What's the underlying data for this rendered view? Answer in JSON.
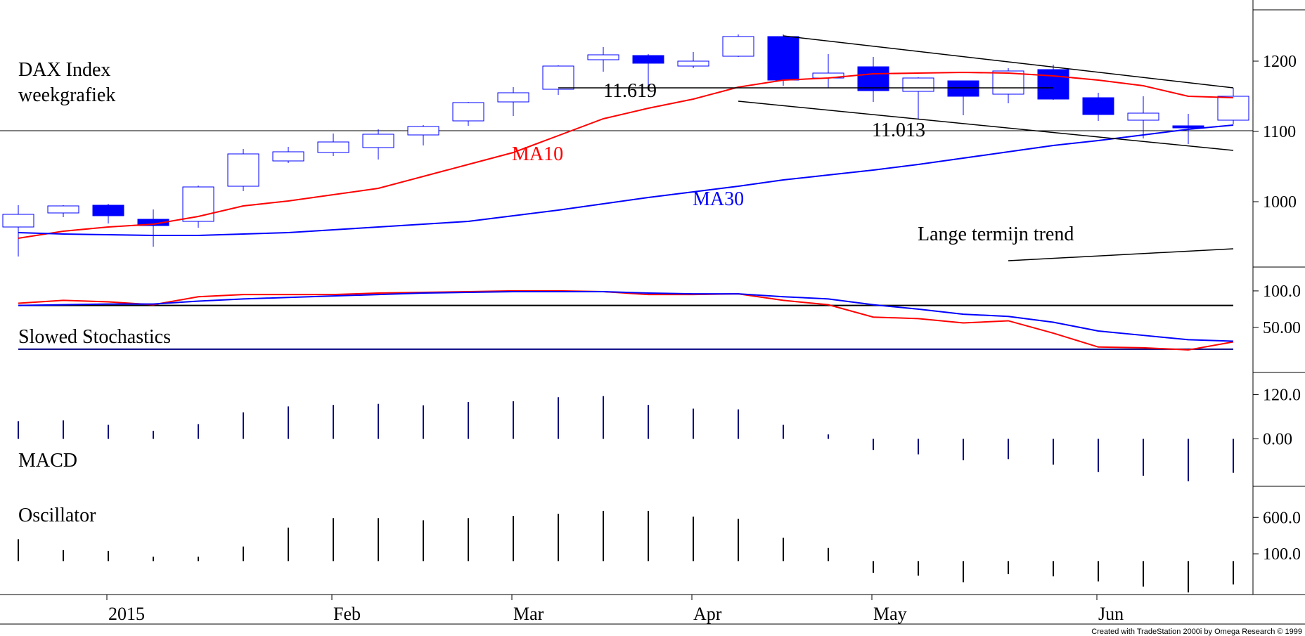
{
  "chart_data": [
    {
      "type": "candlestick",
      "name_label": "DAX Index",
      "subtitle_label": "weekgrafiek",
      "x_tick_labels": [
        {
          "label": "2015",
          "week": 2
        },
        {
          "label": "Feb",
          "week": 7
        },
        {
          "label": "Mar",
          "week": 11
        },
        {
          "label": "Apr",
          "week": 15
        },
        {
          "label": "May",
          "week": 19
        },
        {
          "label": "Jun",
          "week": 24
        }
      ],
      "y_ticks": [
        1000,
        1100,
        1200
      ],
      "ylim": [
        925,
        1265
      ],
      "candles": [
        {
          "week": 0,
          "open": 964,
          "high": 995,
          "low": 922,
          "close": 982
        },
        {
          "week": 1,
          "open": 984,
          "high": 995,
          "low": 978,
          "close": 994
        },
        {
          "week": 2,
          "open": 995,
          "high": 997,
          "low": 969,
          "close": 980
        },
        {
          "week": 3,
          "open": 975,
          "high": 989,
          "low": 936,
          "close": 966
        },
        {
          "week": 4,
          "open": 972,
          "high": 1023,
          "low": 963,
          "close": 1021
        },
        {
          "week": 5,
          "open": 1022,
          "high": 1075,
          "low": 1015,
          "close": 1068
        },
        {
          "week": 6,
          "open": 1058,
          "high": 1078,
          "low": 1055,
          "close": 1071
        },
        {
          "week": 7,
          "open": 1070,
          "high": 1097,
          "low": 1065,
          "close": 1085
        },
        {
          "week": 8,
          "open": 1077,
          "high": 1103,
          "low": 1060,
          "close": 1096
        },
        {
          "week": 9,
          "open": 1095,
          "high": 1109,
          "low": 1080,
          "close": 1107
        },
        {
          "week": 10,
          "open": 1115,
          "high": 1142,
          "low": 1108,
          "close": 1141
        },
        {
          "week": 11,
          "open": 1142,
          "high": 1163,
          "low": 1122,
          "close": 1155
        },
        {
          "week": 12,
          "open": 1160,
          "high": 1194,
          "low": 1152,
          "close": 1193
        },
        {
          "week": 13,
          "open": 1202,
          "high": 1220,
          "low": 1185,
          "close": 1209
        },
        {
          "week": 14,
          "open": 1208,
          "high": 1210,
          "low": 1160,
          "close": 1197
        },
        {
          "week": 15,
          "open": 1193,
          "high": 1213,
          "low": 1190,
          "close": 1200
        },
        {
          "week": 16,
          "open": 1207,
          "high": 1238,
          "low": 1206,
          "close": 1235
        },
        {
          "week": 17,
          "open": 1235,
          "high": 1238,
          "low": 1165,
          "close": 1173
        },
        {
          "week": 18,
          "open": 1176,
          "high": 1210,
          "low": 1162,
          "close": 1183
        },
        {
          "week": 19,
          "open": 1192,
          "high": 1206,
          "low": 1142,
          "close": 1158
        },
        {
          "week": 20,
          "open": 1157,
          "high": 1177,
          "low": 1117,
          "close": 1176
        },
        {
          "week": 21,
          "open": 1172,
          "high": 1172,
          "low": 1123,
          "close": 1150
        },
        {
          "week": 22,
          "open": 1153,
          "high": 1190,
          "low": 1140,
          "close": 1186
        },
        {
          "week": 23,
          "open": 1188,
          "high": 1195,
          "low": 1145,
          "close": 1146
        },
        {
          "week": 24,
          "open": 1148,
          "high": 1155,
          "low": 1115,
          "close": 1124
        },
        {
          "week": 25,
          "open": 1116,
          "high": 1150,
          "low": 1090,
          "close": 1126
        },
        {
          "week": 26,
          "open": 1108,
          "high": 1125,
          "low": 1082,
          "close": 1105
        },
        {
          "week": 27,
          "open": 1116,
          "high": 1162,
          "low": 1110,
          "close": 1150
        }
      ],
      "series": [
        {
          "name": "MA10",
          "color": "#ff0000",
          "values": [
            948,
            958,
            964,
            968,
            979,
            994,
            1001,
            1010,
            1019,
            1036,
            1053,
            1070,
            1094,
            1118,
            1133,
            1146,
            1163,
            1173,
            1176,
            1182,
            1183,
            1184,
            1183,
            1179,
            1173,
            1165,
            1150,
            1148
          ]
        },
        {
          "name": "MA30",
          "color": "#0000ff",
          "values": [
            956,
            954,
            953,
            952,
            952,
            954,
            956,
            960,
            964,
            968,
            972,
            980,
            988,
            997,
            1006,
            1014,
            1022,
            1031,
            1038,
            1045,
            1053,
            1062,
            1071,
            1080,
            1087,
            1095,
            1103,
            1109
          ]
        }
      ],
      "annotations": [
        {
          "text": "11.619",
          "value": 11619,
          "level": 1162,
          "color": "#000000"
        },
        {
          "text": "11.013",
          "value": 11013,
          "level": 1101,
          "color": "#000000"
        },
        {
          "text": "Lange termijn trend",
          "color": "#000000"
        }
      ],
      "trendlines": [
        {
          "from": {
            "week": 17,
            "value": 1236
          },
          "to": {
            "week": 27,
            "value": 1162
          }
        },
        {
          "from": {
            "week": 16,
            "value": 1143
          },
          "to": {
            "week": 27,
            "value": 1073
          }
        },
        {
          "from": {
            "week": 12,
            "value": 1162
          },
          "to": {
            "week": 23,
            "value": 1162
          }
        },
        {
          "from": {
            "week": 22,
            "value": 916
          },
          "to": {
            "week": 27,
            "value": 933
          }
        }
      ],
      "horizontal_line": 1101
    },
    {
      "type": "line",
      "name_label": "Slowed Stochastics",
      "y_tick_labels": [
        "100.0",
        "50.00"
      ],
      "y_ticks": [
        100,
        50
      ],
      "ylim": [
        -10,
        125
      ],
      "reference_lines": [
        80,
        20
      ],
      "series": [
        {
          "name": "",
          "color": "#ff0000",
          "values": [
            83,
            87,
            85,
            81,
            92,
            95,
            95,
            95,
            97,
            98,
            99,
            100,
            100,
            99,
            95,
            95,
            96,
            87,
            81,
            64,
            62,
            56,
            59,
            42,
            23,
            22,
            19,
            30
          ]
        },
        {
          "name": "",
          "color": "#0000ff",
          "values": [
            80,
            81,
            82,
            82,
            86,
            89,
            91,
            93,
            95,
            97,
            98,
            99,
            99,
            99,
            97,
            96,
            96,
            92,
            89,
            81,
            75,
            68,
            65,
            57,
            45,
            39,
            33,
            31
          ]
        }
      ]
    },
    {
      "type": "bar",
      "name_label": "MACD",
      "y_tick_labels": [
        "120.0",
        "0.00"
      ],
      "y_ticks": [
        120,
        0
      ],
      "ylim": [
        -125,
        165
      ],
      "color": "#000080",
      "values": [
        48,
        50,
        38,
        22,
        40,
        72,
        88,
        92,
        95,
        91,
        100,
        102,
        113,
        116,
        92,
        82,
        80,
        38,
        12,
        -30,
        -42,
        -58,
        -55,
        -70,
        -90,
        -100,
        -115,
        -92
      ]
    },
    {
      "type": "bar",
      "name_label": "Oscillator",
      "y_tick_labels": [
        "600.0",
        "100.0"
      ],
      "y_ticks": [
        600,
        100
      ],
      "ylim": [
        -450,
        950
      ],
      "color": "#000000",
      "values": [
        300,
        150,
        140,
        60,
        60,
        200,
        460,
        590,
        590,
        560,
        590,
        620,
        650,
        690,
        690,
        610,
        580,
        320,
        180,
        -160,
        -200,
        -290,
        -180,
        -210,
        -280,
        -350,
        -430,
        -320
      ]
    }
  ],
  "footer": "Created with TradeStation 2000i by Omega Research © 1999"
}
